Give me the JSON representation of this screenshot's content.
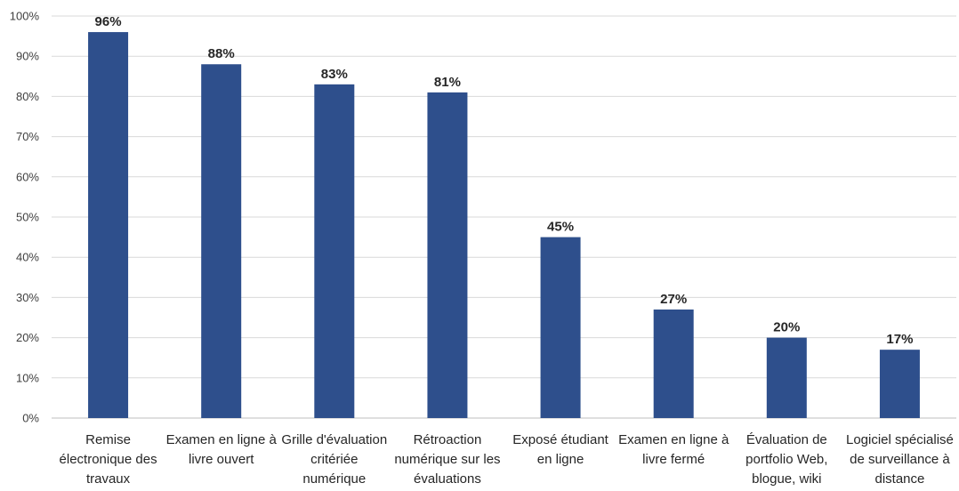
{
  "chart_data": {
    "type": "bar",
    "categories": [
      [
        "Remise",
        "électronique des",
        "travaux"
      ],
      [
        "Examen en ligne à",
        "livre ouvert"
      ],
      [
        "Grille d'évaluation",
        "critériée",
        "numérique"
      ],
      [
        "Rétroaction",
        "numérique sur les",
        "évaluations"
      ],
      [
        "Exposé étudiant",
        "en ligne"
      ],
      [
        "Examen en ligne à",
        "livre fermé"
      ],
      [
        "Évaluation de",
        "portfolio Web,",
        "blogue, wiki"
      ],
      [
        "Logiciel spécialisé",
        "de surveillance à",
        "distance"
      ]
    ],
    "values": [
      96,
      88,
      83,
      81,
      45,
      27,
      20,
      17
    ],
    "data_labels": [
      "96%",
      "88%",
      "83%",
      "81%",
      "45%",
      "27%",
      "20%",
      "17%"
    ],
    "yticks": [
      "0%",
      "10%",
      "20%",
      "30%",
      "40%",
      "50%",
      "60%",
      "70%",
      "80%",
      "90%",
      "100%"
    ],
    "ylim": [
      0,
      100
    ],
    "grid": true,
    "bar_color": "#2E4F8C",
    "grid_color": "#d9d9d9",
    "title": "",
    "xlabel": "",
    "ylabel": ""
  }
}
